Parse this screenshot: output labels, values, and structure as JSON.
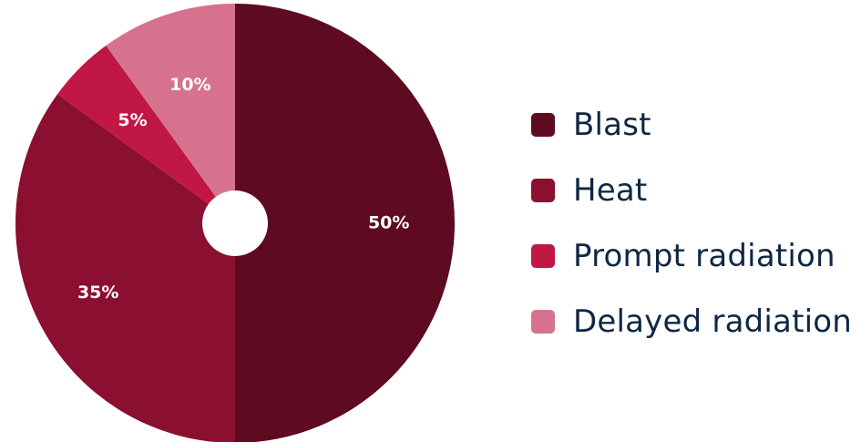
{
  "chart_data": {
    "type": "pie",
    "donut_hole": true,
    "categories": [
      "Blast",
      "Heat",
      "Prompt radiation",
      "Delayed radiation"
    ],
    "values": [
      50,
      35,
      5,
      10
    ],
    "labels": [
      "50%",
      "35%",
      "5%",
      "10%"
    ],
    "colors": [
      "#5e0a20",
      "#8a0f30",
      "#c01744",
      "#d6728d"
    ],
    "start_angle_deg": 0,
    "direction": "clockwise",
    "legend_position": "right"
  },
  "legend": {
    "items": [
      {
        "label": "Blast",
        "color": "#5e0a20"
      },
      {
        "label": "Heat",
        "color": "#8a0f30"
      },
      {
        "label": "Prompt radiation",
        "color": "#c01744"
      },
      {
        "label": "Delayed radiation",
        "color": "#d6728d"
      }
    ]
  }
}
